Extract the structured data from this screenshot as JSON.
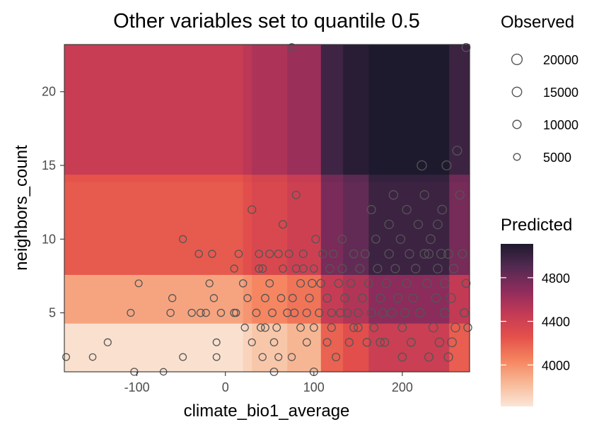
{
  "chart_data": {
    "type": "heatmap",
    "title": "Other variables set to quantile 0.5",
    "xlabel": "climate_bio1_average",
    "ylabel": "neighbors_count",
    "xlim": [
      -182,
      276
    ],
    "ylim": [
      1,
      23.2
    ],
    "x_ticks": [
      -100,
      0,
      100,
      200
    ],
    "x_tick_labels": [
      "-100",
      "0",
      "100",
      "200"
    ],
    "y_ticks": [
      5,
      10,
      15,
      20
    ],
    "y_tick_labels": [
      "5",
      "10",
      "15",
      "20"
    ],
    "grid": false,
    "legend_position": "right",
    "size_legend": {
      "title": "Observed",
      "entries": [
        {
          "label": "20000",
          "value": 20000
        },
        {
          "label": "15000",
          "value": 15000
        },
        {
          "label": "10000",
          "value": 10000
        },
        {
          "label": "5000",
          "value": 5000
        }
      ]
    },
    "color_legend": {
      "title": "Predicted",
      "min": 3620,
      "max": 5110,
      "ticks": [
        4000,
        4400,
        4800
      ],
      "tick_labels": [
        "4000",
        "4400",
        "4800"
      ],
      "colors": [
        "#fbe6d8",
        "#f7b996",
        "#f5845f",
        "#e4504a",
        "#c33a55",
        "#8d2c5c",
        "#532a52",
        "#1e1a2e"
      ]
    },
    "heatmap": {
      "x_bins": [
        {
          "x0": -182,
          "x1": 20,
          "l": 0
        },
        {
          "x0": 20,
          "x1": 30,
          "l": 0.04
        },
        {
          "x0": 30,
          "x1": 70,
          "l": 0.08
        },
        {
          "x0": 70,
          "x1": 108,
          "l": 0.13
        },
        {
          "x0": 108,
          "x1": 133,
          "l": 0.36
        },
        {
          "x0": 133,
          "x1": 162,
          "l": 0.42
        },
        {
          "x0": 162,
          "x1": 253,
          "l": 0.52
        },
        {
          "x0": 253,
          "x1": 276,
          "l": 0.37
        }
      ],
      "y_bins": [
        {
          "y0": 1,
          "y1": 4.3,
          "l": 0.02
        },
        {
          "y0": 4.3,
          "y1": 7.6,
          "l": 0.2
        },
        {
          "y0": 7.6,
          "y1": 13.9,
          "l": 0.4
        },
        {
          "y0": 13.9,
          "y1": 14.4,
          "l": 0.42
        },
        {
          "y0": 14.4,
          "y1": 23.2,
          "l": 0.55
        }
      ]
    },
    "points": [
      [
        -180,
        2,
        5200
      ],
      [
        -150,
        2,
        4500
      ],
      [
        -133,
        3,
        5600
      ],
      [
        -103,
        1,
        5800
      ],
      [
        -98,
        7,
        5300
      ],
      [
        -107,
        5,
        5500
      ],
      [
        -70,
        1,
        4500
      ],
      [
        -62,
        5,
        6200
      ],
      [
        -60,
        6,
        6000
      ],
      [
        -48,
        2,
        5200
      ],
      [
        -48,
        10,
        5800
      ],
      [
        -38,
        5,
        6000
      ],
      [
        -30,
        9,
        6200
      ],
      [
        -28,
        5,
        6500
      ],
      [
        -22,
        5,
        6000
      ],
      [
        -18,
        7,
        5800
      ],
      [
        -15,
        9,
        6200
      ],
      [
        -13,
        6,
        6000
      ],
      [
        -10,
        3,
        5200
      ],
      [
        -5,
        5,
        6000
      ],
      [
        -10,
        2,
        5000
      ],
      [
        10,
        5,
        6500
      ],
      [
        12,
        5,
        6000
      ],
      [
        15,
        9,
        6500
      ],
      [
        10,
        8,
        6000
      ],
      [
        20,
        7,
        6200
      ],
      [
        22,
        4,
        5800
      ],
      [
        25,
        6,
        6000
      ],
      [
        30,
        3,
        5500
      ],
      [
        30,
        12,
        8000
      ],
      [
        35,
        5,
        7000
      ],
      [
        38,
        9,
        6500
      ],
      [
        38,
        8,
        7000
      ],
      [
        40,
        4,
        6500
      ],
      [
        42,
        2,
        6000
      ],
      [
        42,
        8,
        7500
      ],
      [
        45,
        6,
        7000
      ],
      [
        45,
        4,
        7200
      ],
      [
        50,
        7,
        7000
      ],
      [
        50,
        9,
        7500
      ],
      [
        53,
        5,
        7500
      ],
      [
        55,
        3,
        6500
      ],
      [
        58,
        4,
        7000
      ],
      [
        60,
        9,
        7500
      ],
      [
        60,
        2,
        5500
      ],
      [
        63,
        6,
        6500
      ],
      [
        65,
        8,
        7000
      ],
      [
        65,
        11,
        7500
      ],
      [
        70,
        5,
        7500
      ],
      [
        72,
        9,
        7500
      ],
      [
        75,
        2,
        6000
      ],
      [
        76,
        6,
        7000
      ],
      [
        78,
        5,
        7500
      ],
      [
        80,
        13,
        7500
      ],
      [
        80,
        8,
        7200
      ],
      [
        85,
        4,
        7000
      ],
      [
        85,
        7,
        7500
      ],
      [
        88,
        9,
        7500
      ],
      [
        88,
        8,
        7500
      ],
      [
        92,
        5,
        8000
      ],
      [
        92,
        3,
        7000
      ],
      [
        95,
        6,
        8000
      ],
      [
        98,
        7,
        8500
      ],
      [
        100,
        8,
        7000
      ],
      [
        100,
        4,
        7000
      ],
      [
        102,
        10,
        8000
      ],
      [
        106,
        5,
        8000
      ],
      [
        108,
        7,
        8500
      ],
      [
        110,
        9,
        8000
      ],
      [
        115,
        3,
        7500
      ],
      [
        115,
        6,
        9000
      ],
      [
        118,
        8,
        9000
      ],
      [
        120,
        5,
        8000
      ],
      [
        120,
        4,
        8000
      ],
      [
        122,
        9,
        8000
      ],
      [
        125,
        2,
        7500
      ],
      [
        128,
        7,
        9000
      ],
      [
        130,
        5,
        9000
      ],
      [
        132,
        8,
        10000
      ],
      [
        132,
        10,
        8500
      ],
      [
        135,
        6,
        9000
      ],
      [
        138,
        5,
        8500
      ],
      [
        140,
        3,
        8000
      ],
      [
        142,
        7,
        8500
      ],
      [
        145,
        9,
        9000
      ],
      [
        145,
        4,
        8000
      ],
      [
        150,
        5,
        8500
      ],
      [
        152,
        8,
        9500
      ],
      [
        155,
        6,
        9000
      ],
      [
        158,
        9,
        9500
      ],
      [
        160,
        3,
        8500
      ],
      [
        162,
        7,
        9000
      ],
      [
        165,
        12,
        10000
      ],
      [
        165,
        5,
        9000
      ],
      [
        168,
        4,
        8500
      ],
      [
        170,
        10,
        9000
      ],
      [
        172,
        8,
        10000
      ],
      [
        175,
        6,
        10000
      ],
      [
        178,
        5,
        9500
      ],
      [
        180,
        3,
        9000
      ],
      [
        182,
        7,
        10500
      ],
      [
        185,
        9,
        11000
      ],
      [
        185,
        11,
        11000
      ],
      [
        188,
        5,
        11000
      ],
      [
        190,
        13,
        11000
      ],
      [
        192,
        8,
        10000
      ],
      [
        195,
        6,
        10500
      ],
      [
        198,
        10,
        11000
      ],
      [
        200,
        4,
        9500
      ],
      [
        200,
        2,
        9000
      ],
      [
        203,
        5,
        10000
      ],
      [
        205,
        7,
        11000
      ],
      [
        208,
        9,
        10500
      ],
      [
        210,
        3,
        9500
      ],
      [
        212,
        6,
        10000
      ],
      [
        215,
        8,
        11000
      ],
      [
        218,
        11,
        10500
      ],
      [
        220,
        5,
        11500
      ],
      [
        222,
        15,
        14000
      ],
      [
        225,
        9,
        12000
      ],
      [
        225,
        13,
        11000
      ],
      [
        228,
        7,
        11000
      ],
      [
        230,
        2,
        10000
      ],
      [
        232,
        10,
        12000
      ],
      [
        235,
        4,
        12000
      ],
      [
        238,
        6,
        11500
      ],
      [
        240,
        8,
        12000
      ],
      [
        240,
        11,
        12000
      ],
      [
        242,
        3,
        11500
      ],
      [
        244,
        9,
        13000
      ],
      [
        245,
        12,
        11500
      ],
      [
        248,
        5,
        13000
      ],
      [
        248,
        7,
        12000
      ],
      [
        250,
        15,
        13000
      ],
      [
        252,
        2,
        11000
      ],
      [
        252,
        9,
        12000
      ],
      [
        255,
        6,
        12500
      ],
      [
        256,
        3,
        12500
      ],
      [
        258,
        8,
        11000
      ],
      [
        260,
        4,
        11500
      ],
      [
        262,
        16,
        12500
      ],
      [
        265,
        13,
        10500
      ],
      [
        268,
        9,
        9500
      ],
      [
        270,
        5,
        9500
      ],
      [
        272,
        7,
        9000
      ],
      [
        274,
        4,
        8500
      ],
      [
        272,
        23,
        9000
      ],
      [
        75,
        23,
        7500
      ],
      [
        100,
        1,
        7500
      ],
      [
        55,
        1,
        7000
      ],
      [
        150,
        4,
        8500
      ],
      [
        175,
        3,
        9000
      ],
      [
        230,
        9,
        11000
      ],
      [
        205,
        12,
        10500
      ]
    ]
  }
}
